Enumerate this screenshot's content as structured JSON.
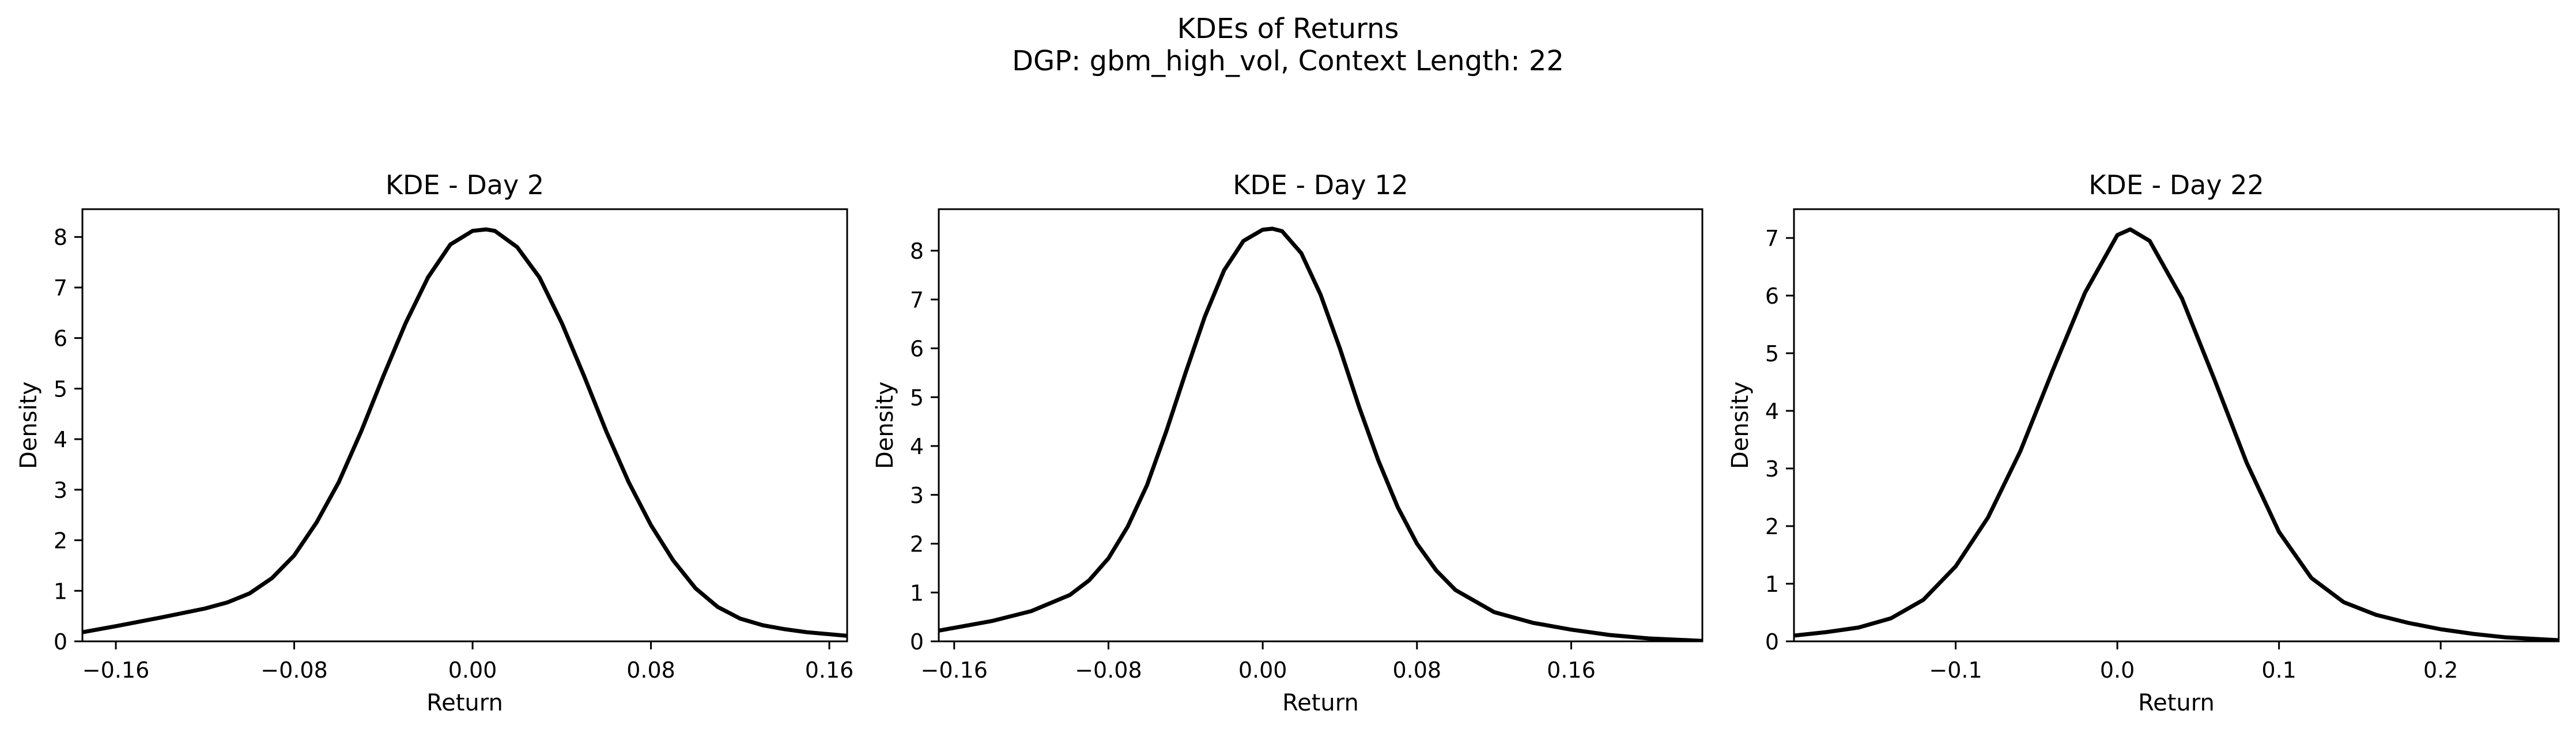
{
  "figure": {
    "title": "KDEs of Returns",
    "subtitle": "DGP: gbm_high_vol, Context Length: 22"
  },
  "chart_data": [
    {
      "type": "line",
      "title": "KDE - Day 2",
      "xlabel": "Return",
      "ylabel": "Density",
      "xlim": [
        -0.175,
        0.168
      ],
      "ylim": [
        0,
        8.55
      ],
      "xticks": [
        -0.16,
        -0.08,
        0.0,
        0.08,
        0.16
      ],
      "xtick_labels": [
        "−0.16",
        "−0.08",
        "0.00",
        "0.08",
        "0.16"
      ],
      "yticks": [
        0,
        1,
        2,
        3,
        4,
        5,
        6,
        7,
        8
      ],
      "ytick_labels": [
        "0",
        "1",
        "2",
        "3",
        "4",
        "5",
        "6",
        "7",
        "8"
      ],
      "grid": false,
      "series": [
        {
          "color": "#000000",
          "x": [
            -0.175,
            -0.16,
            -0.14,
            -0.12,
            -0.11,
            -0.1,
            -0.09,
            -0.08,
            -0.07,
            -0.06,
            -0.05,
            -0.04,
            -0.03,
            -0.02,
            -0.01,
            0.0,
            0.006,
            0.01,
            0.02,
            0.03,
            0.04,
            0.05,
            0.06,
            0.07,
            0.08,
            0.09,
            0.1,
            0.11,
            0.12,
            0.13,
            0.14,
            0.15,
            0.168
          ],
          "y": [
            0.18,
            0.3,
            0.47,
            0.65,
            0.77,
            0.95,
            1.25,
            1.7,
            2.35,
            3.15,
            4.15,
            5.25,
            6.3,
            7.2,
            7.85,
            8.12,
            8.15,
            8.12,
            7.8,
            7.2,
            6.3,
            5.25,
            4.15,
            3.15,
            2.3,
            1.6,
            1.05,
            0.68,
            0.45,
            0.32,
            0.24,
            0.18,
            0.11
          ]
        }
      ]
    },
    {
      "type": "line",
      "title": "KDE - Day 12",
      "xlabel": "Return",
      "ylabel": "Density",
      "xlim": [
        -0.168,
        0.228
      ],
      "ylim": [
        0,
        8.85
      ],
      "xticks": [
        -0.16,
        -0.08,
        0.0,
        0.08,
        0.16
      ],
      "xtick_labels": [
        "−0.16",
        "−0.08",
        "0.00",
        "0.08",
        "0.16"
      ],
      "yticks": [
        0,
        1,
        2,
        3,
        4,
        5,
        6,
        7,
        8
      ],
      "ytick_labels": [
        "0",
        "1",
        "2",
        "3",
        "4",
        "5",
        "6",
        "7",
        "8"
      ],
      "grid": false,
      "series": [
        {
          "color": "#000000",
          "x": [
            -0.168,
            -0.14,
            -0.12,
            -0.1,
            -0.09,
            -0.08,
            -0.07,
            -0.06,
            -0.05,
            -0.04,
            -0.03,
            -0.02,
            -0.01,
            0.0,
            0.005,
            0.01,
            0.02,
            0.03,
            0.04,
            0.05,
            0.06,
            0.07,
            0.08,
            0.09,
            0.1,
            0.12,
            0.14,
            0.16,
            0.18,
            0.2,
            0.228
          ],
          "y": [
            0.22,
            0.42,
            0.62,
            0.95,
            1.25,
            1.7,
            2.35,
            3.2,
            4.3,
            5.5,
            6.65,
            7.6,
            8.2,
            8.43,
            8.45,
            8.4,
            7.95,
            7.1,
            6.0,
            4.8,
            3.7,
            2.75,
            2.0,
            1.45,
            1.05,
            0.6,
            0.38,
            0.24,
            0.13,
            0.06,
            0.01
          ]
        }
      ]
    },
    {
      "type": "line",
      "title": "KDE - Day 22",
      "xlabel": "Return",
      "ylabel": "Density",
      "xlim": [
        -0.2,
        0.273
      ],
      "ylim": [
        0,
        7.5
      ],
      "xticks": [
        -0.1,
        0.0,
        0.1,
        0.2
      ],
      "xtick_labels": [
        "−0.1",
        "0.0",
        "0.1",
        "0.2"
      ],
      "yticks": [
        0,
        1,
        2,
        3,
        4,
        5,
        6,
        7
      ],
      "ytick_labels": [
        "0",
        "1",
        "2",
        "3",
        "4",
        "5",
        "6",
        "7"
      ],
      "grid": false,
      "series": [
        {
          "color": "#000000",
          "x": [
            -0.2,
            -0.18,
            -0.16,
            -0.14,
            -0.12,
            -0.1,
            -0.08,
            -0.06,
            -0.04,
            -0.02,
            0.0,
            0.008,
            0.02,
            0.04,
            0.06,
            0.08,
            0.1,
            0.12,
            0.14,
            0.16,
            0.18,
            0.2,
            0.22,
            0.24,
            0.273
          ],
          "y": [
            0.1,
            0.16,
            0.24,
            0.4,
            0.72,
            1.3,
            2.15,
            3.3,
            4.7,
            6.05,
            7.05,
            7.15,
            6.95,
            5.95,
            4.55,
            3.1,
            1.9,
            1.1,
            0.68,
            0.46,
            0.32,
            0.21,
            0.13,
            0.07,
            0.02
          ]
        }
      ]
    }
  ]
}
